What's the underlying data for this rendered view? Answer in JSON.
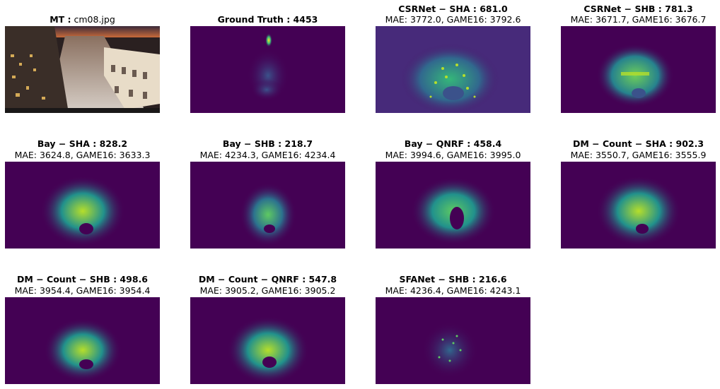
{
  "panels": [
    {
      "title_bold": "MT :",
      "title_rest": " cm08.jpg",
      "metrics": ""
    },
    {
      "title_bold": "Ground Truth : 4453",
      "title_rest": "",
      "metrics": ""
    },
    {
      "title_bold": "CSRNet − SHA : 681.0",
      "title_rest": "",
      "metrics": "MAE: 3772.0, GAME16: 3792.6"
    },
    {
      "title_bold": "CSRNet − SHB : 781.3",
      "title_rest": "",
      "metrics": "MAE: 3671.7, GAME16: 3676.7"
    },
    {
      "title_bold": "Bay − SHA : 828.2",
      "title_rest": "",
      "metrics": "MAE: 3624.8, GAME16: 3633.3"
    },
    {
      "title_bold": "Bay − SHB : 218.7",
      "title_rest": "",
      "metrics": "MAE: 4234.3, GAME16: 4234.4"
    },
    {
      "title_bold": "Bay − QNRF : 458.4",
      "title_rest": "",
      "metrics": "MAE: 3994.6, GAME16: 3995.0"
    },
    {
      "title_bold": "DM − Count − SHA : 902.3",
      "title_rest": "",
      "metrics": "MAE: 3550.7, GAME16: 3555.9"
    },
    {
      "title_bold": "DM − Count − SHB : 498.6",
      "title_rest": "",
      "metrics": "MAE: 3954.4, GAME16: 3954.4"
    },
    {
      "title_bold": "DM − Count − QNRF : 547.8",
      "title_rest": "",
      "metrics": "MAE: 3905.2, GAME16: 3905.2"
    },
    {
      "title_bold": "SFANet − SHB : 216.6",
      "title_rest": "",
      "metrics": "MAE: 4236.4, GAME16: 4243.1"
    }
  ],
  "colors": {
    "viridis_low": "#440154",
    "viridis_mid": "#21918c",
    "viridis_high": "#fde725"
  }
}
